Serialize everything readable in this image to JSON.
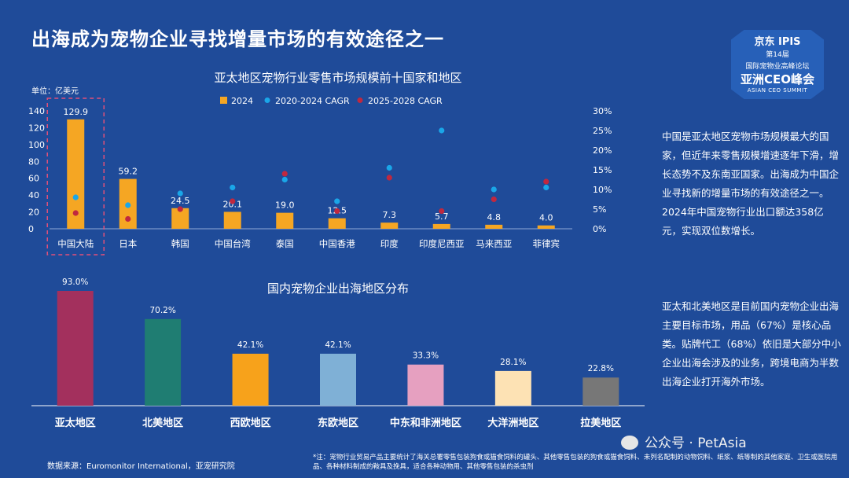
{
  "page_title": "出海成为宠物企业寻找增量市场的有效途径之一",
  "logo": {
    "line1": "京东 IPIS",
    "line2": "第14届",
    "line3": "国际宠物业高峰论坛",
    "line4": "亚洲CEO峰会",
    "line5": "ASIAN CEO SUMMIT"
  },
  "chart_data": [
    {
      "type": "bar",
      "title": "亚太地区宠物行业零售市场规模前十国家和地区",
      "unit_label": "单位：亿美元",
      "categories": [
        "中国大陆",
        "日本",
        "韩国",
        "中国台湾",
        "泰国",
        "中国香港",
        "印度",
        "印度尼西亚",
        "马来西亚",
        "菲律宾"
      ],
      "series": [
        {
          "name": "2024",
          "kind": "bar",
          "axis": "left",
          "color": "#f5a623",
          "values": [
            129.9,
            59.2,
            24.5,
            20.1,
            19.0,
            12.5,
            7.3,
            5.7,
            4.8,
            4.0
          ]
        },
        {
          "name": "2020-2024 CAGR",
          "kind": "point",
          "axis": "right",
          "color": "#1aa6e8",
          "values": [
            8,
            6,
            9,
            10.5,
            12.5,
            7,
            15.5,
            25,
            10,
            10.5
          ]
        },
        {
          "name": "2025-2028 CAGR",
          "kind": "point",
          "axis": "right",
          "color": "#c0283f",
          "values": [
            4,
            2.5,
            5,
            7,
            14,
            4.5,
            13,
            4.5,
            7.5,
            12
          ]
        }
      ],
      "data_labels": [
        "129.9",
        "59.2",
        "24.5",
        "20.1",
        "19.0",
        "12.5",
        "7.3",
        "5.7",
        "4.8",
        "4.0"
      ],
      "ylim_left": [
        0,
        140
      ],
      "yticks_left": [
        "0",
        "20",
        "40",
        "60",
        "80",
        "100",
        "120",
        "140"
      ],
      "ylim_right": [
        0,
        30
      ],
      "yticks_right": [
        "0%",
        "5%",
        "10%",
        "15%",
        "20%",
        "25%",
        "30%"
      ],
      "legend_position": "top-left",
      "grid": false
    },
    {
      "type": "bar",
      "title": "国内宠物企业出海地区分布",
      "categories": [
        "亚太地区",
        "北美地区",
        "西欧地区",
        "东欧地区",
        "中东和非洲地区",
        "大洋洲地区",
        "拉美地区"
      ],
      "values": [
        93.0,
        70.2,
        42.1,
        42.1,
        33.3,
        28.1,
        22.8
      ],
      "data_labels": [
        "93.0%",
        "70.2%",
        "42.1%",
        "42.1%",
        "33.3%",
        "28.1%",
        "22.8%"
      ],
      "colors": [
        "#a3305d",
        "#1f7d72",
        "#f7a21b",
        "#7fb0d6",
        "#e6a0c0",
        "#fde2b4",
        "#777777"
      ],
      "ylim": [
        0,
        100
      ],
      "grid": false
    }
  ],
  "side_text_1": "中国是亚太地区宠物市场规模最大的国家，但近年来零售规模增速逐年下滑，增长态势不及东南亚国家。出海成为中国企业寻找新的增量市场的有效途径之一。2024年中国宠物行业出口额达358亿元，实现双位数增长。",
  "side_text_2": "亚太和北美地区是目前国内宠物企业出海主要目标市场，用品（67%）是核心品类。贴牌代工（68%）依旧是大部分中小企业出海会涉及的业务，跨境电商为半数出海企业打开海外市场。",
  "source": "数据来源：Euromonitor International，亚宠研究院",
  "note": "*注：宠物行业贸易产品主要统计了海关总署零售包装狗食或猫食饲料的罐头、其他零售包装的狗食或猫食饲料、未列名配制的动物饲料、纸浆、纸等制的其他家庭、卫生或医院用品、各种材料制成的鞍具及挽具，适合各种动物用、其他零售包装的杀虫剂",
  "wechat_label": "公众号 · PetAsia"
}
